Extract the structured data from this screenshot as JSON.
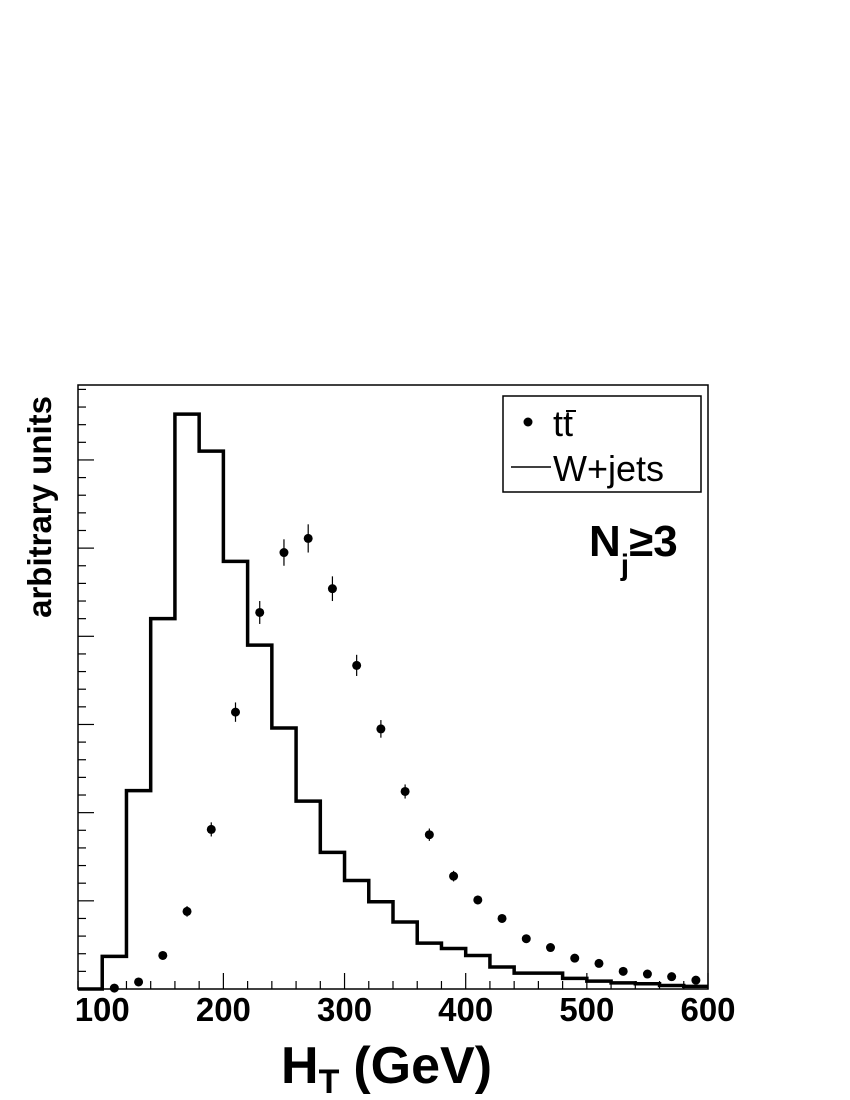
{
  "chart_data": {
    "type": "histogram",
    "xlabel": "H",
    "xlabel_sub": "T",
    "xlabel_unit": "(GeV)",
    "ylabel": "arbitrary units",
    "xlim": [
      80,
      600
    ],
    "ylim": [
      0,
      6.85
    ],
    "grid": false,
    "y_tick_labels_shown": false,
    "x_ticks": [
      100,
      200,
      300,
      400,
      500,
      600
    ],
    "legend_position": "top-right",
    "annotation": {
      "main": "N",
      "sub": "j",
      "rel": "≥3"
    },
    "series": [
      {
        "name": "W+jets",
        "style": "step",
        "color": "#000000",
        "bin_edges": [
          80,
          100,
          120,
          140,
          160,
          180,
          200,
          220,
          240,
          260,
          280,
          300,
          320,
          340,
          360,
          380,
          400,
          420,
          440,
          460,
          480,
          500,
          520,
          540,
          560,
          580,
          600
        ],
        "values": [
          0,
          0.37,
          2.25,
          4.2,
          6.52,
          6.1,
          4.85,
          3.9,
          2.96,
          2.13,
          1.55,
          1.23,
          0.99,
          0.76,
          0.52,
          0.46,
          0.38,
          0.25,
          0.18,
          0.18,
          0.12,
          0.09,
          0.07,
          0.06,
          0.04,
          0.03
        ]
      },
      {
        "name": "tt̄",
        "legend_main": "t",
        "legend_bar": "t",
        "style": "points",
        "color": "#000000",
        "x": [
          110,
          130,
          150,
          170,
          190,
          210,
          230,
          250,
          270,
          290,
          310,
          330,
          350,
          370,
          390,
          410,
          430,
          450,
          470,
          490,
          510,
          530,
          550,
          570,
          590
        ],
        "y": [
          0.01,
          0.08,
          0.38,
          0.88,
          1.81,
          3.14,
          4.27,
          4.95,
          5.11,
          4.54,
          3.67,
          2.95,
          2.24,
          1.75,
          1.28,
          1.01,
          0.8,
          0.57,
          0.47,
          0.35,
          0.29,
          0.2,
          0.17,
          0.14,
          0.1
        ],
        "yerr": [
          0.01,
          0.02,
          0.04,
          0.06,
          0.08,
          0.11,
          0.13,
          0.15,
          0.16,
          0.14,
          0.12,
          0.1,
          0.08,
          0.07,
          0.06,
          0.05,
          0.04,
          0.03,
          0.03,
          0.03,
          0.02,
          0.02,
          0.02,
          0.02,
          0.02
        ]
      }
    ]
  }
}
